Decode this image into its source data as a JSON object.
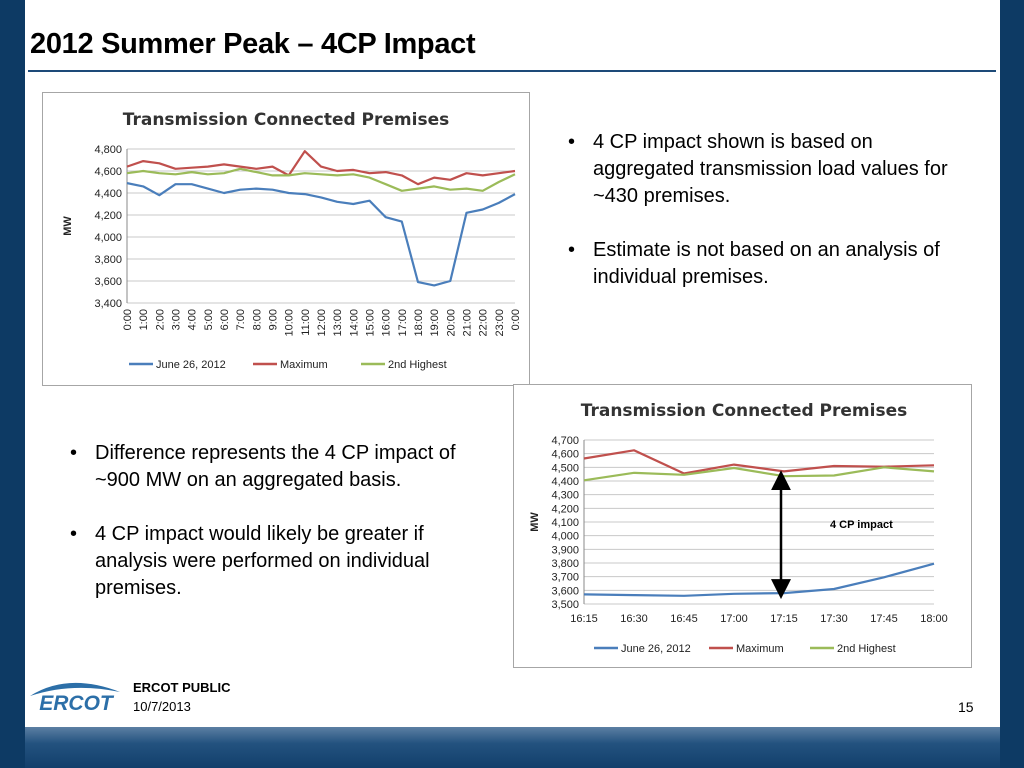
{
  "slide": {
    "title": "2012 Summer Peak – 4CP Impact",
    "bullets_top": [
      "4 CP impact shown is based on aggregated transmission load values for ~430 premises.",
      "Estimate is not based on an analysis of individual premises."
    ],
    "bullets_left": [
      "Difference represents the 4 CP impact of ~900 MW on an aggregated basis.",
      "4 CP impact would likely be greater if analysis were performed on individual premises."
    ],
    "footer": {
      "classification": "ERCOT PUBLIC",
      "date": "10/7/2013",
      "page": "15",
      "logo_text": "ERCOT"
    }
  },
  "colors": {
    "june": "#4a7ebb",
    "maximum": "#c0504d",
    "second": "#9bbb59",
    "background": "#0d3a64"
  },
  "chart_data": [
    {
      "type": "line",
      "title": "Transmission Connected Premises",
      "ylabel": "MW",
      "ylim": [
        3400,
        4800
      ],
      "yticks": [
        "3,400",
        "3,600",
        "3,800",
        "4,000",
        "4,200",
        "4,400",
        "4,600",
        "4,800"
      ],
      "xticks": [
        "0:00",
        "1:00",
        "2:00",
        "3:00",
        "4:00",
        "5:00",
        "6:00",
        "7:00",
        "8:00",
        "9:00",
        "10:00",
        "11:00",
        "12:00",
        "13:00",
        "14:00",
        "15:00",
        "16:00",
        "17:00",
        "18:00",
        "19:00",
        "20:00",
        "21:00",
        "22:00",
        "23:00",
        "0:00"
      ],
      "grid": true,
      "legend_position": "bottom",
      "series": [
        {
          "name": "June 26, 2012",
          "color": "#4a7ebb",
          "values": [
            4490,
            4460,
            4380,
            4480,
            4480,
            4440,
            4400,
            4430,
            4440,
            4430,
            4400,
            4390,
            4360,
            4320,
            4300,
            4330,
            4180,
            4140,
            3590,
            3560,
            3600,
            4220,
            4250,
            4310,
            4390
          ]
        },
        {
          "name": "Maximum",
          "color": "#c0504d",
          "values": [
            4640,
            4690,
            4670,
            4620,
            4630,
            4640,
            4660,
            4640,
            4620,
            4640,
            4560,
            4780,
            4640,
            4600,
            4610,
            4580,
            4590,
            4560,
            4480,
            4540,
            4520,
            4580,
            4560,
            4580,
            4600
          ]
        },
        {
          "name": "2nd Highest",
          "color": "#9bbb59",
          "values": [
            4580,
            4600,
            4580,
            4570,
            4590,
            4570,
            4580,
            4620,
            4590,
            4560,
            4560,
            4580,
            4570,
            4560,
            4570,
            4540,
            4480,
            4420,
            4440,
            4460,
            4430,
            4440,
            4420,
            4500,
            4570
          ]
        }
      ]
    },
    {
      "type": "line",
      "title": "Transmission Connected Premises",
      "ylabel": "MW",
      "ylim": [
        3500,
        4700
      ],
      "yticks": [
        "3,500",
        "3,600",
        "3,700",
        "3,800",
        "3,900",
        "4,000",
        "4,100",
        "4,200",
        "4,300",
        "4,400",
        "4,500",
        "4,600",
        "4,700"
      ],
      "categories": [
        "16:15",
        "16:30",
        "16:45",
        "17:00",
        "17:15",
        "17:30",
        "17:45",
        "18:00"
      ],
      "grid": true,
      "legend_position": "bottom",
      "annotation": "4 CP impact",
      "series": [
        {
          "name": "June 26, 2012",
          "color": "#4a7ebb",
          "values": [
            3570,
            3565,
            3560,
            3575,
            3580,
            3610,
            3695,
            3795
          ]
        },
        {
          "name": "Maximum",
          "color": "#c0504d",
          "values": [
            4565,
            4625,
            4455,
            4520,
            4470,
            4510,
            4505,
            4515
          ]
        },
        {
          "name": "2nd Highest",
          "color": "#9bbb59",
          "values": [
            4405,
            4460,
            4445,
            4495,
            4435,
            4440,
            4500,
            4470
          ]
        }
      ]
    }
  ]
}
